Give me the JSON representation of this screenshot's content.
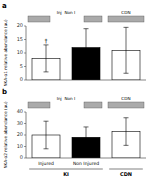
{
  "chart_data": [
    {
      "type": "bar",
      "title": "a",
      "y_label": "NKA-α1 relative abundance (au)",
      "categories": [
        null,
        null,
        null
      ],
      "values": [
        8,
        12,
        11
      ],
      "errors": [
        5,
        7,
        8.5
      ],
      "colors": [
        "#ffffff",
        "#000000",
        "#ffffff"
      ],
      "ylim": [
        0,
        20
      ],
      "yticks": [
        0,
        5,
        10,
        15,
        20
      ],
      "grid": false,
      "annotations": [
        "†",
        "Inj  Non I",
        "CDN"
      ]
    },
    {
      "type": "bar",
      "title": "b",
      "y_label": "NKA-α2 relative abundance (au)",
      "categories": [
        "Injured",
        "Non Injured",
        null
      ],
      "values": [
        20,
        18,
        23
      ],
      "errors": [
        12,
        9,
        12
      ],
      "colors": [
        "#ffffff",
        "#000000",
        "#ffffff"
      ],
      "ylim": [
        0,
        40
      ],
      "yticks": [
        0,
        10,
        20,
        30,
        40
      ],
      "grid": false,
      "annotations": [
        "Inj  Non I",
        "CDN",
        "KI",
        "CDN"
      ]
    }
  ]
}
